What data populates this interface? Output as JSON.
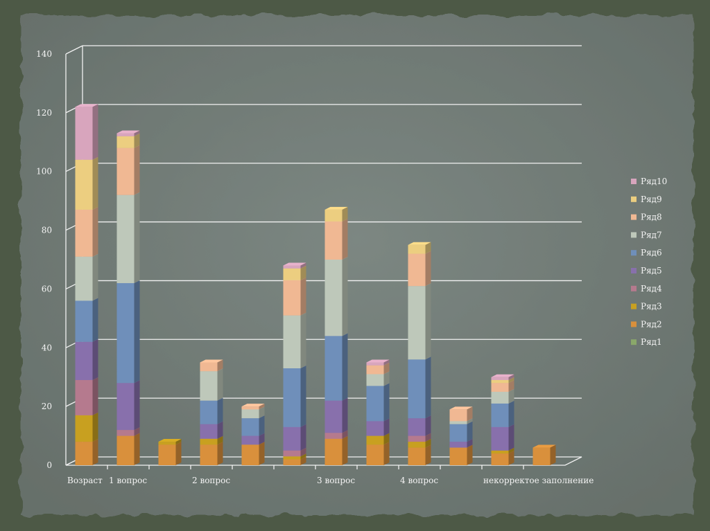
{
  "chart_data": {
    "type": "bar",
    "stacked": true,
    "style": "3d-column",
    "title": "",
    "xlabel": "",
    "ylabel": "",
    "ylim": [
      0,
      140
    ],
    "y_ticks": [
      "0",
      "20",
      "40",
      "60",
      "80",
      "100",
      "120",
      "140"
    ],
    "grid": true,
    "legend_position": "right",
    "categories": [
      "Возраст",
      "1 вопрос",
      "",
      "2 вопрос",
      "",
      "",
      "3 вопрос",
      "",
      "4 вопрос",
      "",
      "некорректое заполнение",
      ""
    ],
    "series": [
      {
        "name": "Ряд1",
        "color": "#8aa86a",
        "values": [
          0,
          0,
          0,
          0,
          0,
          0,
          0,
          0,
          0,
          0,
          0,
          0
        ]
      },
      {
        "name": "Ряд2",
        "color": "#d9903c",
        "values": [
          8,
          10,
          7,
          7,
          7,
          2,
          9,
          7,
          6,
          6,
          4,
          6
        ]
      },
      {
        "name": "Ряд3",
        "color": "#c8a020",
        "values": [
          9,
          0,
          1,
          2,
          0,
          1,
          0,
          3,
          2,
          0,
          1,
          0
        ]
      },
      {
        "name": "Ряд4",
        "color": "#b57a8e",
        "values": [
          12,
          2,
          0,
          0,
          0,
          2,
          2,
          0,
          2,
          0,
          0,
          0
        ]
      },
      {
        "name": "Ряд5",
        "color": "#8870ac",
        "values": [
          13,
          16,
          0,
          5,
          3,
          8,
          11,
          5,
          6,
          2,
          8,
          0
        ]
      },
      {
        "name": "Ряд6",
        "color": "#6f8fba",
        "values": [
          14,
          34,
          0,
          8,
          6,
          20,
          22,
          12,
          20,
          6,
          8,
          0
        ]
      },
      {
        "name": "Ряд7",
        "color": "#bec8ba",
        "values": [
          15,
          30,
          0,
          10,
          3,
          18,
          26,
          4,
          25,
          1,
          4,
          0
        ]
      },
      {
        "name": "Ряд8",
        "color": "#f0b893",
        "values": [
          16,
          16,
          0,
          3,
          1,
          12,
          13,
          3,
          11,
          4,
          3,
          0
        ]
      },
      {
        "name": "Ряд9",
        "color": "#ecce80",
        "values": [
          17,
          4,
          0,
          0,
          0,
          4,
          4,
          0,
          3,
          0,
          1,
          0
        ]
      },
      {
        "name": "Ряд10",
        "color": "#d8a5bd",
        "values": [
          18,
          1,
          0,
          0,
          0,
          1,
          0,
          1,
          0,
          0,
          1,
          0
        ]
      }
    ]
  }
}
